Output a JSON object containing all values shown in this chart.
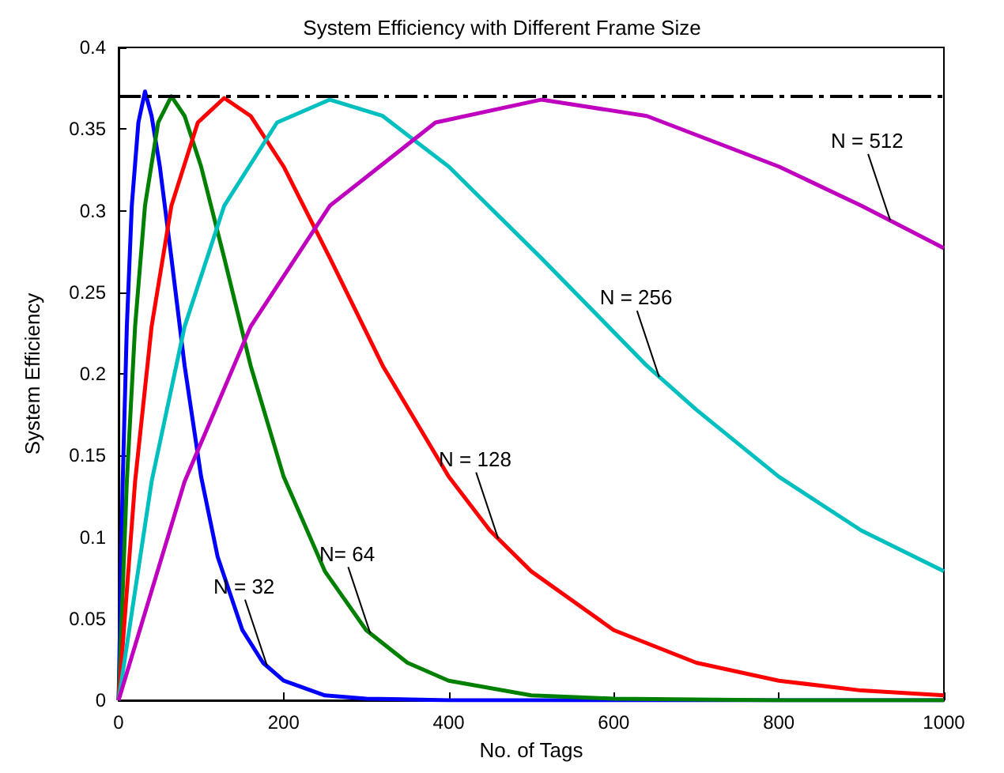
{
  "chart_data": {
    "type": "line",
    "title": "System Efficiency with Different Frame Size",
    "xlabel": "No. of Tags",
    "ylabel": "System Efficiency",
    "xlim": [
      0,
      1000
    ],
    "xticks": [
      0,
      200,
      400,
      600,
      800,
      1000
    ],
    "ylim": [
      0,
      0.4
    ],
    "yticks": [
      0,
      0.05,
      0.1,
      0.15,
      0.2,
      0.25,
      0.3,
      0.35,
      0.4
    ],
    "grid": false,
    "marker": "none",
    "line_style": "solid",
    "series": [
      {
        "color": "#0000ff",
        "x": [
          0,
          5,
          10,
          16,
          24,
          32,
          40,
          50,
          64,
          80,
          100,
          120,
          150,
          175,
          200,
          250,
          300,
          400,
          500,
          600,
          800,
          1000
        ],
        "values": [
          0,
          0.134,
          0.229,
          0.303,
          0.354,
          0.373,
          0.358,
          0.327,
          0.271,
          0.205,
          0.137,
          0.088,
          0.043,
          0.023,
          0.012,
          0.003,
          0.001,
          0,
          0,
          0,
          0,
          0
        ]
      },
      {
        "color": "#008000",
        "x": [
          0,
          10,
          20,
          32,
          48,
          64,
          80,
          100,
          128,
          160,
          200,
          250,
          300,
          350,
          400,
          500,
          600,
          800,
          1000
        ],
        "values": [
          0,
          0.134,
          0.229,
          0.303,
          0.354,
          0.37,
          0.358,
          0.327,
          0.271,
          0.205,
          0.137,
          0.079,
          0.043,
          0.023,
          0.012,
          0.003,
          0.001,
          0,
          0
        ]
      },
      {
        "color": "#ff0000",
        "x": [
          0,
          20,
          40,
          64,
          96,
          128,
          160,
          200,
          256,
          320,
          400,
          450,
          500,
          600,
          700,
          800,
          900,
          1000
        ],
        "values": [
          0,
          0.134,
          0.229,
          0.303,
          0.354,
          0.369,
          0.358,
          0.327,
          0.271,
          0.205,
          0.137,
          0.104,
          0.079,
          0.043,
          0.023,
          0.012,
          0.006,
          0.003
        ]
      },
      {
        "color": "#00bfbf",
        "x": [
          0,
          40,
          80,
          128,
          192,
          256,
          320,
          400,
          512,
          640,
          700,
          800,
          900,
          1000
        ],
        "values": [
          0,
          0.134,
          0.229,
          0.303,
          0.354,
          0.368,
          0.358,
          0.327,
          0.271,
          0.205,
          0.178,
          0.137,
          0.104,
          0.079
        ]
      },
      {
        "color": "#bf00bf",
        "x": [
          0,
          80,
          160,
          256,
          384,
          512,
          640,
          800,
          900,
          1000
        ],
        "values": [
          0,
          0.134,
          0.229,
          0.303,
          0.354,
          0.368,
          0.358,
          0.327,
          0.303,
          0.277
        ]
      }
    ],
    "ref_lines": [
      {
        "axis": "y",
        "value": 0.37,
        "color": "#000000",
        "line_style": "dashed"
      }
    ],
    "annotations": [
      {
        "text": "N = 32",
        "x": 180,
        "y": 0.021
      },
      {
        "text": "N= 64",
        "x": 305,
        "y": 0.041
      },
      {
        "text": "N = 128",
        "x": 460,
        "y": 0.099
      },
      {
        "text": "N = 256",
        "x": 655,
        "y": 0.198
      },
      {
        "text": "N = 512",
        "x": 935,
        "y": 0.294
      }
    ]
  }
}
